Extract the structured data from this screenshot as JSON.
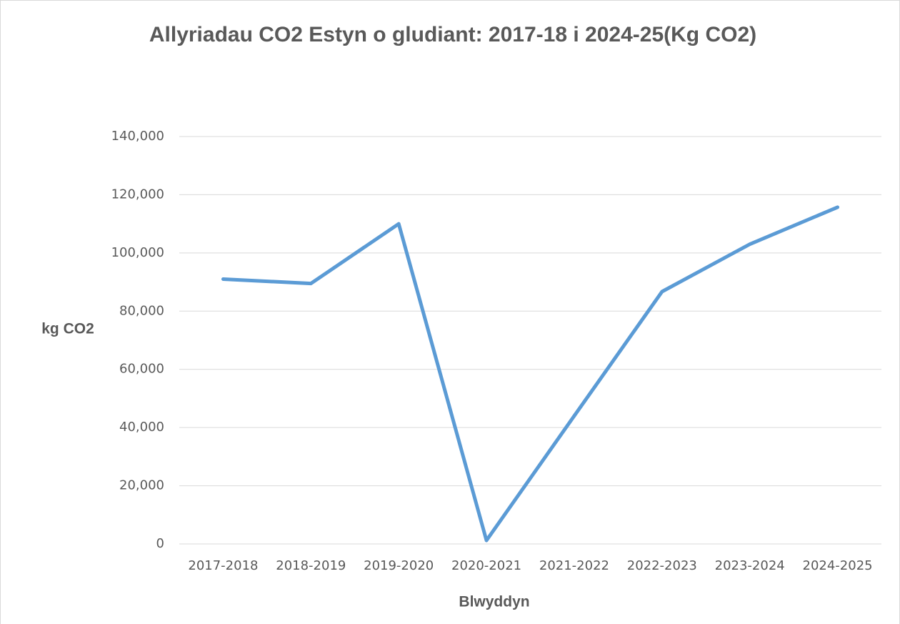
{
  "chart_data": {
    "type": "line",
    "title": "Allyriadau CO2 Estyn o gludiant: 2017-18 i 2024-25(Kg CO2)",
    "x_label": "Blwyddyn",
    "y_label": "kg CO2",
    "categories": [
      "2017-2018",
      "2018-2019",
      "2019-2020",
      "2020-2021",
      "2021-2022",
      "2022-2023",
      "2023-2024",
      "2024-2025"
    ],
    "series": [
      {
        "name": "kg CO2",
        "color": "#5b9bd5",
        "values": [
          91000,
          89500,
          110000,
          1200,
          44000,
          86700,
          103000,
          115700
        ]
      }
    ],
    "ylim": [
      0,
      140000
    ],
    "yticks": [
      0,
      {
        "value": 20000,
        "label": "20,000"
      },
      {
        "value": 40000,
        "label": "40,000"
      },
      {
        "value": 60000,
        "label": "60,000"
      },
      {
        "value": 80000,
        "label": "80,000"
      },
      {
        "value": 100000,
        "label": "100,000"
      },
      {
        "value": 120000,
        "label": "120,000"
      },
      {
        "value": 140000,
        "label": "140,000"
      }
    ],
    "grid": true
  }
}
